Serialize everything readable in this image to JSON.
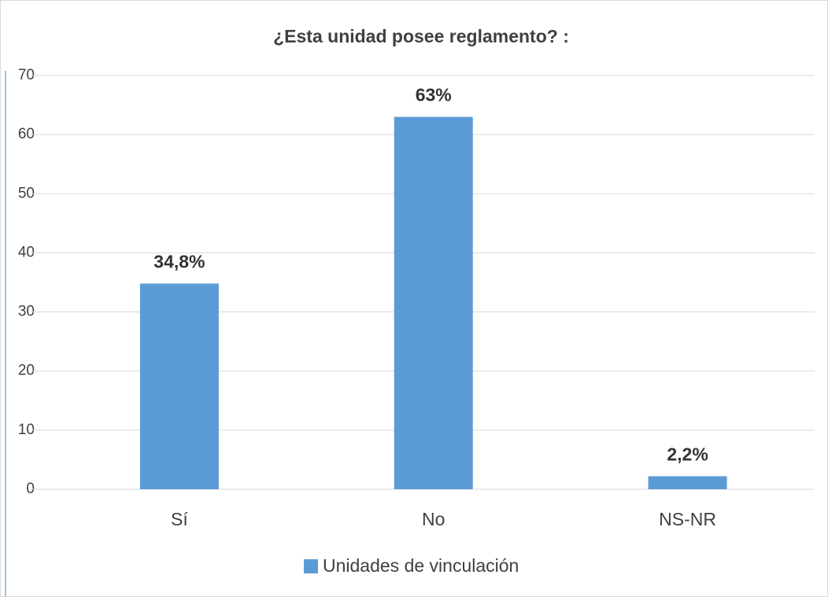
{
  "chart_data": {
    "type": "bar",
    "title": "¿Esta unidad posee reglamento? :",
    "categories": [
      "Sí",
      "No",
      "NS-NR"
    ],
    "series": [
      {
        "name": "Unidades de vinculación",
        "color": "#5b9bd5",
        "values": [
          34.8,
          63,
          2.2
        ],
        "value_labels": [
          "34,8%",
          "63%",
          "2,2%"
        ]
      }
    ],
    "ylim": [
      0,
      70
    ],
    "yticks": [
      0,
      10,
      20,
      30,
      40,
      50,
      60,
      70
    ],
    "grid": true,
    "legend": "bottom"
  }
}
